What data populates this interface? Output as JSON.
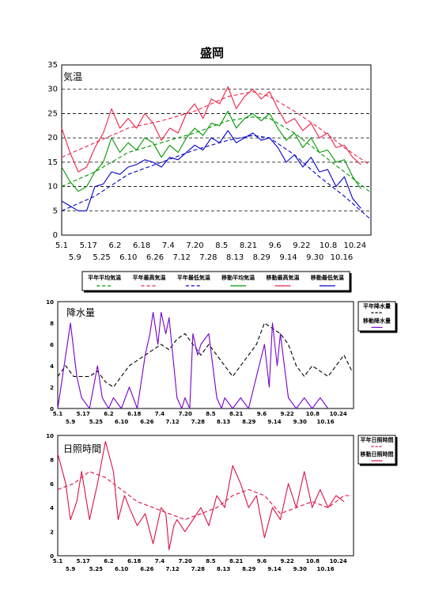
{
  "title": "盛岡",
  "colors": {
    "mean": "#009900",
    "max": "#ee2244",
    "min": "#0000cc",
    "precip": "#000000",
    "precip_moving": "#7700cc",
    "sun": "#dd1144"
  },
  "chart_data": [
    {
      "type": "line",
      "label": "気温",
      "ylim": [
        0,
        35
      ],
      "yticks": [
        0,
        5,
        10,
        15,
        20,
        25,
        30,
        35
      ],
      "grid": "dashed-horizontal",
      "x_ticks_top": [
        "5.1",
        "5.17",
        "6.2",
        "6.18",
        "7.4",
        "7.20",
        "8.5",
        "8.21",
        "9.6",
        "9.22",
        "10.8",
        "10.24"
      ],
      "x_ticks_bottom": [
        "5.9",
        "5.25",
        "6.10",
        "6.26",
        "7.12",
        "7.28",
        "8.13",
        "8.29",
        "9.14",
        "9.30",
        "10.16"
      ],
      "legend": {
        "placement": "below",
        "items": [
          {
            "label": "平年平均気温",
            "color": "mean",
            "style": "dashed"
          },
          {
            "label": "平年最高気温",
            "color": "max",
            "style": "dashed"
          },
          {
            "label": "平年最低気温",
            "color": "min",
            "style": "dashed"
          },
          {
            "label": "移動平均気温",
            "color": "mean",
            "style": "solid"
          },
          {
            "label": "移動最高気温",
            "color": "max",
            "style": "solid"
          },
          {
            "label": "移動最低気温",
            "color": "min",
            "style": "solid"
          }
        ]
      },
      "series": [
        {
          "id": "normal_mean",
          "color": "mean",
          "style": "dashed",
          "x": [
            0,
            20,
            40,
            60,
            80,
            100,
            115,
            125,
            140,
            155,
            170,
            185
          ],
          "y": [
            10,
            13,
            17,
            19,
            21,
            23.5,
            24.3,
            24,
            21,
            17,
            13,
            9
          ]
        },
        {
          "id": "normal_max",
          "color": "max",
          "style": "dashed",
          "x": [
            0,
            20,
            40,
            60,
            80,
            100,
            115,
            125,
            140,
            155,
            170,
            185
          ],
          "y": [
            16,
            19,
            22,
            23.5,
            25.5,
            28.5,
            29.5,
            28.5,
            25.5,
            22,
            18,
            14.5
          ]
        },
        {
          "id": "normal_min",
          "color": "min",
          "style": "dashed",
          "x": [
            0,
            20,
            40,
            60,
            80,
            100,
            115,
            125,
            140,
            155,
            170,
            185
          ],
          "y": [
            5,
            8,
            12.5,
            15,
            17.5,
            19.5,
            20.5,
            20,
            16.5,
            12,
            8,
            3.5
          ]
        },
        {
          "id": "moving_mean",
          "color": "mean",
          "style": "solid",
          "x": [
            0,
            5,
            10,
            15,
            20,
            25,
            30,
            35,
            40,
            45,
            50,
            55,
            60,
            65,
            70,
            75,
            80,
            85,
            90,
            95,
            100,
            105,
            110,
            115,
            120,
            125,
            130,
            135,
            140,
            145,
            150,
            155,
            160,
            165,
            170,
            175,
            180
          ],
          "y": [
            14,
            11,
            9,
            10,
            13,
            15,
            20,
            17,
            19,
            17.5,
            20,
            19,
            16,
            18.5,
            17,
            20,
            22,
            20.5,
            23,
            22.5,
            25.5,
            22,
            24,
            25,
            23.5,
            25,
            22,
            19.5,
            21,
            18,
            20,
            17,
            17.5,
            15,
            15.5,
            12,
            9.5
          ]
        },
        {
          "id": "moving_max",
          "color": "max",
          "style": "solid",
          "x": [
            0,
            5,
            10,
            15,
            20,
            25,
            30,
            35,
            40,
            45,
            50,
            55,
            60,
            65,
            70,
            75,
            80,
            85,
            90,
            95,
            100,
            105,
            110,
            115,
            120,
            125,
            130,
            135,
            140,
            145,
            150,
            155,
            160,
            165,
            170,
            175,
            180
          ],
          "y": [
            22,
            17,
            13,
            14,
            18,
            21,
            26,
            22,
            24,
            22,
            25,
            23,
            19.5,
            22,
            21,
            25,
            27,
            24,
            28,
            27,
            30.5,
            26,
            28.5,
            30,
            28,
            29.5,
            26,
            23,
            24,
            21.5,
            23,
            20,
            21,
            18,
            18.5,
            16,
            14.5
          ]
        },
        {
          "id": "moving_min",
          "color": "min",
          "style": "solid",
          "x": [
            0,
            5,
            10,
            15,
            20,
            25,
            30,
            35,
            40,
            45,
            50,
            55,
            60,
            65,
            70,
            75,
            80,
            85,
            90,
            95,
            100,
            105,
            110,
            115,
            120,
            125,
            130,
            135,
            140,
            145,
            150,
            155,
            160,
            165,
            170,
            175,
            180
          ],
          "y": [
            7,
            6,
            5,
            5,
            10,
            10.5,
            13,
            12.5,
            14,
            14.5,
            15.5,
            15,
            14,
            16,
            15.5,
            17,
            18.5,
            17.5,
            20,
            19,
            21.5,
            19,
            20,
            21,
            19.5,
            20,
            18,
            15,
            16.5,
            14,
            16,
            13,
            13.5,
            10,
            12,
            7.5,
            5.5
          ]
        }
      ]
    },
    {
      "type": "line",
      "label": "降水量",
      "ylim": [
        0,
        10
      ],
      "yticks": [
        0,
        2,
        4,
        6,
        8,
        10
      ],
      "x_ticks_top": [
        "5.1",
        "5.17",
        "6.2",
        "6.18",
        "7.4",
        "7.20",
        "8.5",
        "8.21",
        "9.6",
        "9.22",
        "10.8",
        "10.24"
      ],
      "x_ticks_bottom": [
        "5.9",
        "5.25",
        "6.10",
        "6.26",
        "7.12",
        "7.28",
        "8.13",
        "8.29",
        "9.14",
        "9.30",
        "10.16"
      ],
      "legend": {
        "placement": "right",
        "items": [
          {
            "label": "平年降水量",
            "color": "precip",
            "style": "dashed"
          },
          {
            "label": "移動降水量",
            "color": "precip_moving",
            "style": "solid"
          }
        ]
      },
      "series": [
        {
          "id": "normal_precip",
          "color": "precip",
          "style": "dashed",
          "x": [
            0,
            5,
            10,
            15,
            20,
            25,
            30,
            35,
            40,
            45,
            50,
            55,
            60,
            65,
            70,
            75,
            80,
            85,
            90,
            95,
            100,
            105,
            110,
            115,
            120,
            125,
            130,
            135,
            140,
            145,
            150,
            155,
            160,
            165,
            170,
            175,
            180,
            185
          ],
          "y": [
            3,
            4,
            3,
            3,
            3,
            3.5,
            2.5,
            2,
            3,
            4,
            4.5,
            5,
            5.5,
            6,
            5.5,
            6.5,
            7,
            6,
            5,
            6,
            5,
            4,
            3,
            4,
            5,
            6,
            8,
            7.5,
            7,
            6,
            4,
            3,
            4,
            3.5,
            3,
            4,
            5,
            3.5
          ]
        },
        {
          "id": "moving_precip",
          "color": "precip_moving",
          "style": "solid",
          "x": [
            0,
            5,
            8,
            12,
            15,
            20,
            25,
            28,
            32,
            35,
            40,
            45,
            50,
            55,
            58,
            60,
            63,
            65,
            68,
            70,
            73,
            75,
            78,
            80,
            83,
            85,
            88,
            90,
            95,
            100,
            103,
            105,
            110,
            115,
            120,
            125,
            130,
            133,
            135,
            138,
            140,
            145,
            150,
            155,
            160,
            165,
            170
          ],
          "y": [
            0,
            5,
            8,
            3,
            1,
            0,
            4,
            1,
            0,
            1,
            0,
            2,
            0,
            5,
            7,
            9,
            6,
            9,
            7,
            8.5,
            4,
            1,
            0,
            1,
            0,
            7,
            5,
            6,
            7,
            1,
            0,
            1,
            0,
            1,
            0,
            3,
            6,
            2,
            8,
            4,
            7,
            1,
            0,
            1,
            0,
            1,
            0
          ]
        }
      ]
    },
    {
      "type": "line",
      "label": "日照時間",
      "ylim": [
        0,
        10
      ],
      "yticks": [
        0,
        2,
        4,
        6,
        8,
        10
      ],
      "x_ticks_top": [
        "5.1",
        "5.17",
        "6.2",
        "6.18",
        "7.4",
        "7.20",
        "8.5",
        "8.21",
        "9.6",
        "9.22",
        "10.8",
        "10.24"
      ],
      "x_ticks_bottom": [
        "5.9",
        "5.25",
        "6.10",
        "6.26",
        "7.12",
        "7.28",
        "8.13",
        "8.29",
        "9.14",
        "9.30",
        "10.16"
      ],
      "legend": {
        "placement": "right",
        "items": [
          {
            "label": "平年日照時間",
            "color": "sun",
            "style": "dashed"
          },
          {
            "label": "移動日照時間",
            "color": "sun",
            "style": "solid"
          }
        ]
      },
      "series": [
        {
          "id": "normal_sun",
          "color": "sun",
          "style": "dashed",
          "x": [
            0,
            10,
            20,
            30,
            40,
            50,
            60,
            70,
            80,
            90,
            100,
            110,
            120,
            130,
            140,
            150,
            160,
            170,
            180,
            185
          ],
          "y": [
            5.5,
            6,
            7,
            6.5,
            5.5,
            4.5,
            4,
            3.5,
            3,
            3.5,
            4,
            5,
            5.5,
            5,
            3.5,
            4,
            4.5,
            4,
            5,
            5
          ]
        },
        {
          "id": "moving_sun",
          "color": "sun",
          "style": "solid",
          "x": [
            0,
            5,
            8,
            12,
            15,
            20,
            25,
            30,
            35,
            38,
            42,
            45,
            50,
            55,
            60,
            65,
            68,
            70,
            73,
            75,
            80,
            85,
            90,
            95,
            100,
            105,
            110,
            115,
            120,
            125,
            130,
            135,
            140,
            145,
            150,
            155,
            160,
            165,
            170,
            175,
            180
          ],
          "y": [
            8.5,
            6,
            3,
            4.5,
            7,
            3,
            6,
            9.5,
            7,
            3,
            5,
            4,
            2.5,
            3.5,
            1,
            4,
            3.5,
            0.5,
            2.5,
            3,
            2,
            3,
            4,
            2.5,
            5,
            4,
            7.5,
            6,
            4,
            5,
            1.5,
            4,
            3,
            6,
            4,
            7,
            4,
            5.5,
            4,
            5,
            4.5
          ]
        }
      ]
    }
  ]
}
